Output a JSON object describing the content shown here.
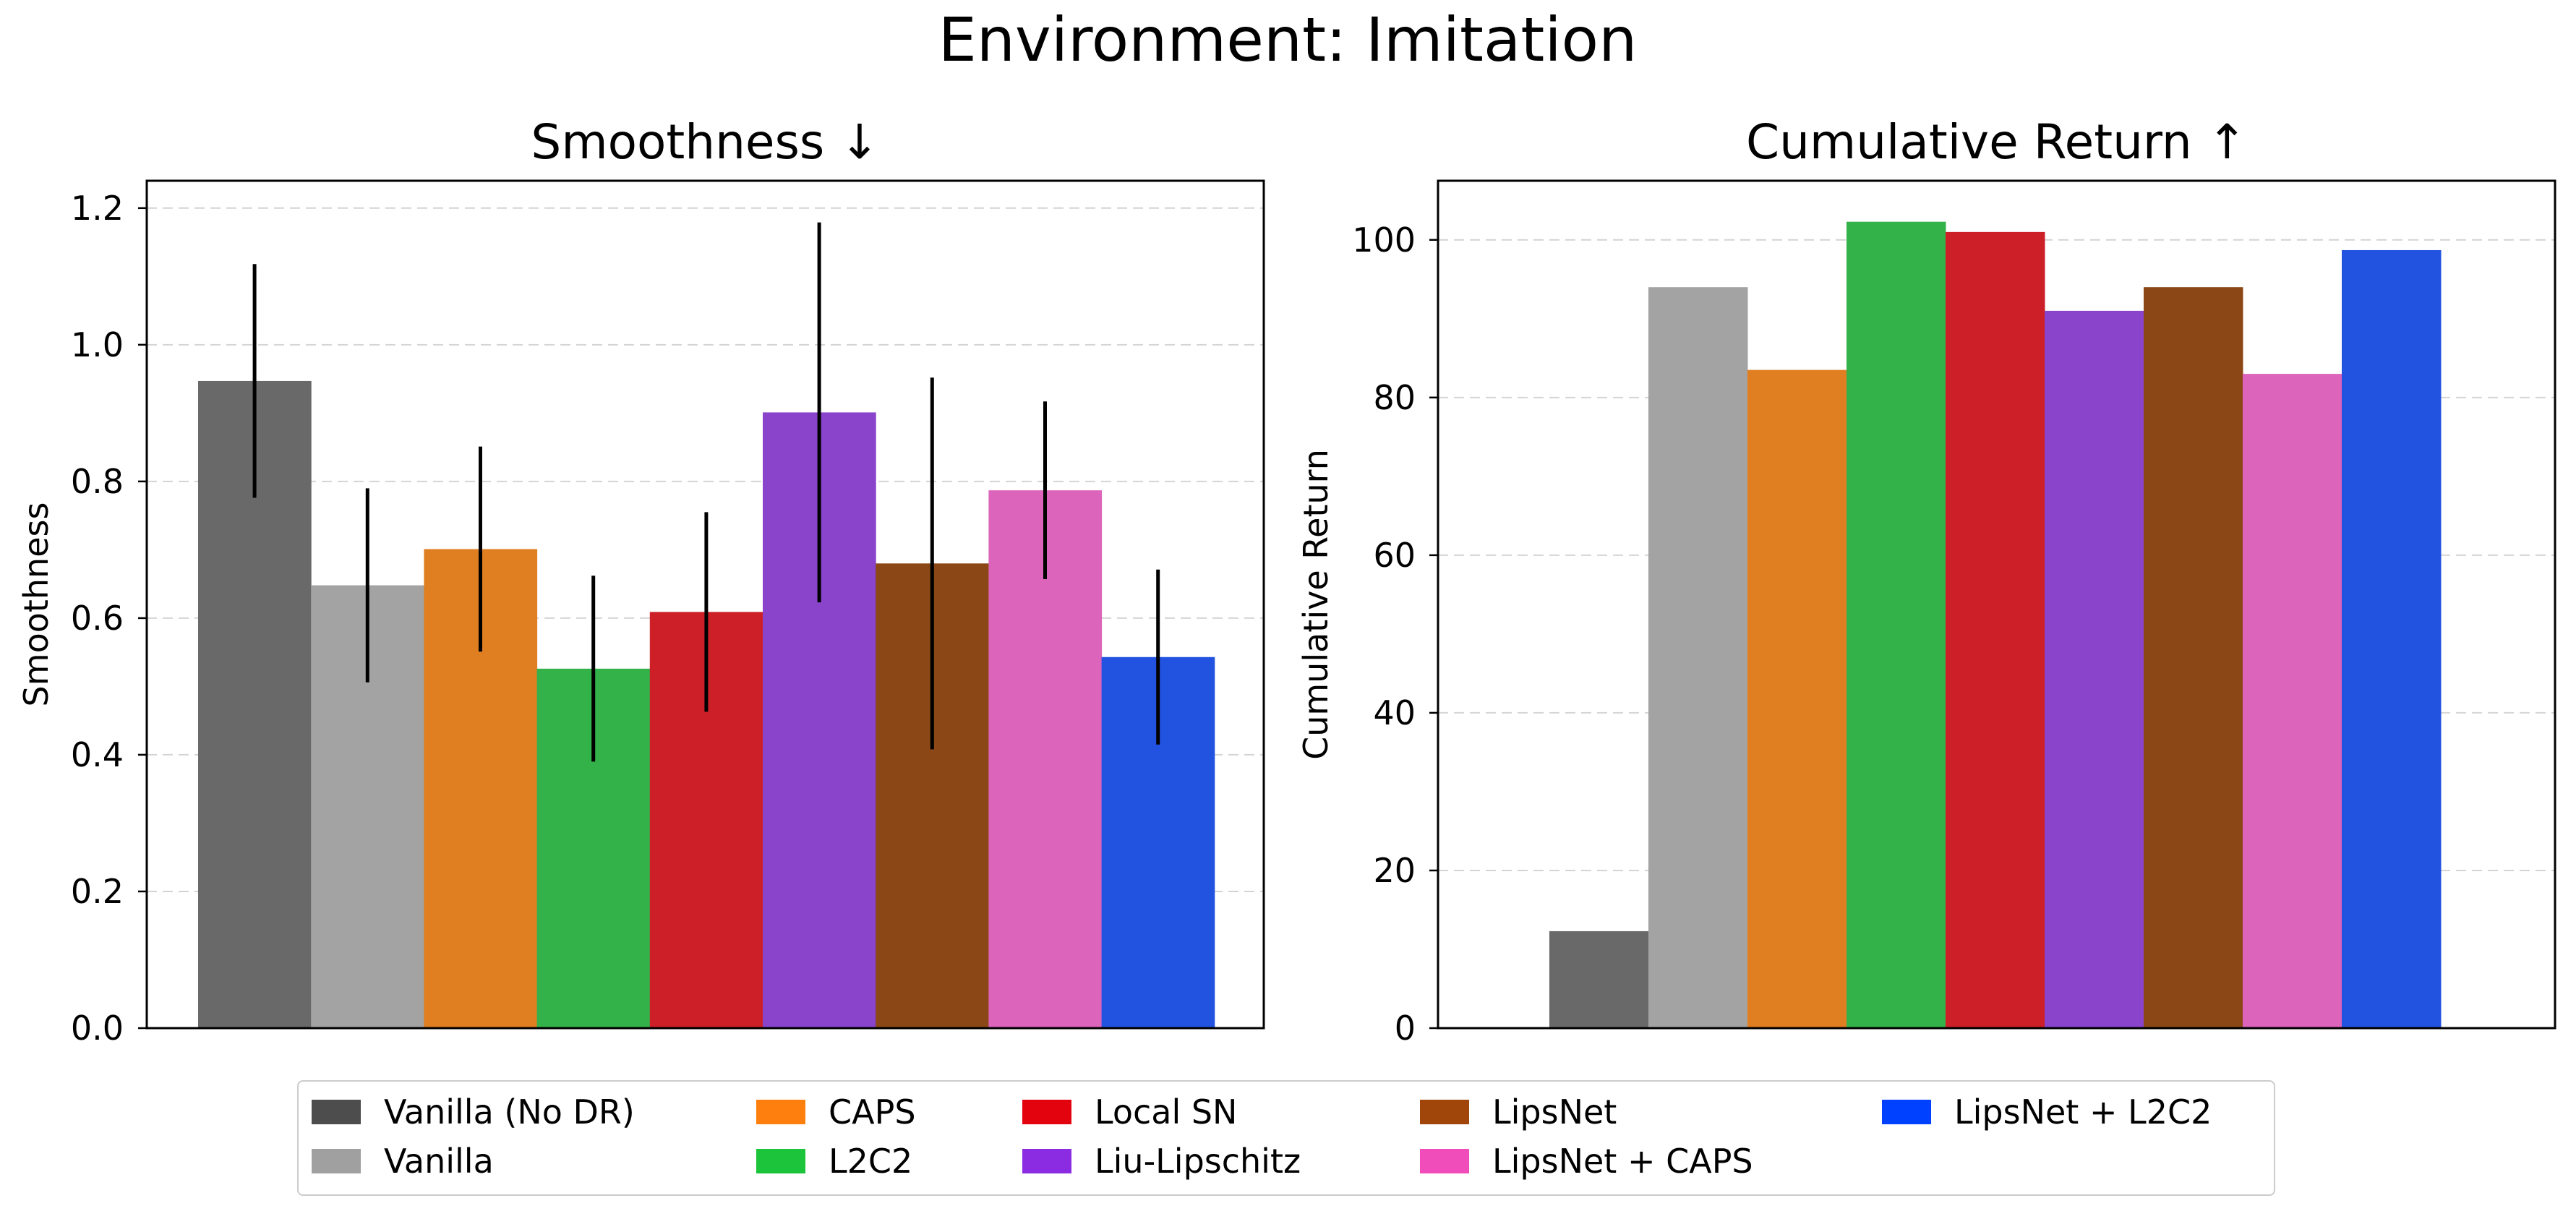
{
  "figure": {
    "title": "Environment: Imitation"
  },
  "chart_data": [
    {
      "type": "bar",
      "title": "Smoothness ↓",
      "xlabel": "",
      "ylabel": "Smoothness",
      "ylim": [
        0,
        1.24
      ],
      "yticks": [
        "0.0",
        "0.2",
        "0.4",
        "0.6",
        "0.8",
        "1.0",
        "1.2"
      ],
      "ytick_values": [
        0,
        0.2,
        0.4,
        0.6,
        0.8,
        1.0,
        1.2
      ],
      "grid": "horizontal dashed",
      "categories": [
        "Vanilla (No DR)",
        "Vanilla",
        "CAPS",
        "L2C2",
        "Local SN",
        "Liu-Lipschitz",
        "LipsNet",
        "LipsNet + CAPS",
        "LipsNet + L2C2"
      ],
      "values": [
        0.947,
        0.648,
        0.701,
        0.526,
        0.609,
        0.901,
        0.68,
        0.787,
        0.543
      ],
      "error": [
        0.171,
        0.142,
        0.15,
        0.136,
        0.146,
        0.278,
        0.272,
        0.13,
        0.128
      ]
    },
    {
      "type": "bar",
      "title": "Cumulative Return ↑",
      "xlabel": "",
      "ylabel": "Cumulative Return",
      "ylim": [
        0,
        107.5
      ],
      "yticks": [
        "0",
        "20",
        "40",
        "60",
        "80",
        "100"
      ],
      "ytick_values": [
        0,
        20,
        40,
        60,
        80,
        100
      ],
      "grid": "horizontal dashed",
      "categories": [
        "Vanilla (No DR)",
        "Vanilla",
        "CAPS",
        "L2C2",
        "Local SN",
        "Liu-Lipschitz",
        "LipsNet",
        "LipsNet + CAPS",
        "LipsNet + L2C2"
      ],
      "values": [
        12.3,
        94.0,
        83.5,
        102.3,
        101.0,
        91.0,
        94.0,
        83.0,
        98.7
      ]
    }
  ],
  "legend": {
    "placement": "bottom-center",
    "items": [
      {
        "label": "Vanilla (No DR)",
        "color": "#4d4d4d"
      },
      {
        "label": "Vanilla",
        "color": "#a0a0a0"
      },
      {
        "label": "CAPS",
        "color": "#ff7f0e"
      },
      {
        "label": "L2C2",
        "color": "#1bc43a"
      },
      {
        "label": "Local SN",
        "color": "#e3030f"
      },
      {
        "label": "Liu-Lipschitz",
        "color": "#8b2be2"
      },
      {
        "label": "LipsNet",
        "color": "#a0460a"
      },
      {
        "label": "LipsNet + CAPS",
        "color": "#f04dba"
      },
      {
        "label": "LipsNet + L2C2",
        "color": "#0040ff"
      }
    ]
  },
  "bar_colors": [
    "#696969",
    "#a3a3a3",
    "#e07e22",
    "#33b24a",
    "#cc1f28",
    "#8a44cc",
    "#8b4816",
    "#dc64bb",
    "#2252e0"
  ]
}
